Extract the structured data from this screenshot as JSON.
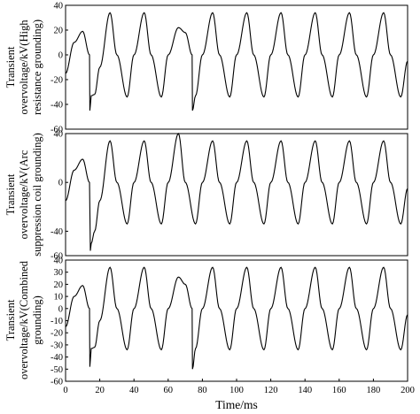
{
  "chart_data": [
    {
      "type": "line",
      "ylabel": [
        "Transient",
        "overvoltage/kV(High",
        "resistance grounding)"
      ],
      "xlabel": "",
      "xlim": [
        0,
        200
      ],
      "ylim": [
        -60,
        40
      ],
      "yticks": [
        40,
        20,
        0,
        -20,
        -40,
        -60
      ],
      "xticks": [],
      "grid": false,
      "series": [
        {
          "sampled_x": [
            0,
            5,
            10,
            14,
            14.2,
            15,
            17,
            20,
            26,
            30,
            36,
            40,
            46,
            50,
            56,
            60,
            66,
            70,
            74,
            74.2,
            76,
            80,
            86,
            90,
            96,
            100,
            106,
            110,
            116,
            120,
            126,
            130,
            136,
            140,
            146,
            150,
            156,
            160,
            166,
            170,
            176,
            180,
            186,
            190,
            196,
            200
          ],
          "sampled_y": [
            -15,
            10,
            19,
            0,
            -45,
            -33,
            -32,
            -10,
            34,
            0,
            -34,
            0,
            34,
            0,
            -34,
            0,
            22,
            18,
            0,
            -45,
            -33,
            0,
            34,
            0,
            -34,
            0,
            34,
            0,
            -34,
            0,
            34,
            0,
            -34,
            0,
            34,
            0,
            -34,
            0,
            34,
            0,
            -34,
            0,
            34,
            0,
            -34,
            -5
          ]
        }
      ]
    },
    {
      "type": "line",
      "ylabel": [
        "Transient",
        "overvoltage/kV(Arc",
        "suppression coil grounding)"
      ],
      "xlabel": "",
      "xlim": [
        0,
        200
      ],
      "ylim": [
        -60,
        40
      ],
      "yticks": [
        40,
        0,
        -40,
        -60
      ],
      "xticks": [],
      "grid": false,
      "series": [
        {
          "sampled_x": [
            0,
            5,
            10,
            14,
            14.5,
            15,
            17,
            20,
            26,
            30,
            36,
            40,
            46,
            50,
            56,
            60,
            66,
            70,
            76,
            80,
            86,
            90,
            96,
            100,
            106,
            110,
            116,
            120,
            126,
            130,
            136,
            140,
            146,
            150,
            156,
            160,
            166,
            170,
            176,
            180,
            186,
            190,
            196,
            200
          ],
          "sampled_y": [
            -15,
            10,
            19,
            0,
            -56,
            -50,
            -40,
            -15,
            34,
            0,
            -34,
            0,
            34,
            0,
            -34,
            0,
            40,
            0,
            -34,
            0,
            34,
            0,
            -34,
            0,
            34,
            0,
            -34,
            0,
            34,
            0,
            -34,
            0,
            34,
            0,
            -34,
            0,
            34,
            0,
            -34,
            0,
            34,
            0,
            -34,
            -5
          ]
        }
      ]
    },
    {
      "type": "line",
      "ylabel": [
        "Transient",
        "overvoltage/kV(Combined",
        "grounding)"
      ],
      "xlabel": "Time/ms",
      "xlim": [
        0,
        200
      ],
      "ylim": [
        -60,
        40
      ],
      "yticks": [
        40,
        30,
        20,
        10,
        0,
        -10,
        -20,
        -30,
        -40,
        -50,
        -60
      ],
      "xticks": [
        0,
        20,
        40,
        60,
        80,
        100,
        120,
        140,
        160,
        180,
        200
      ],
      "grid": false,
      "series": [
        {
          "sampled_x": [
            0,
            5,
            10,
            14,
            14.2,
            15,
            17,
            20,
            26,
            30,
            36,
            40,
            46,
            50,
            56,
            60,
            66,
            70,
            74,
            74.2,
            76,
            80,
            86,
            90,
            96,
            100,
            106,
            110,
            116,
            120,
            126,
            130,
            136,
            140,
            146,
            150,
            156,
            160,
            166,
            170,
            176,
            180,
            186,
            190,
            196,
            200
          ],
          "sampled_y": [
            -15,
            10,
            19,
            0,
            -48,
            -33,
            -32,
            -10,
            34,
            0,
            -34,
            0,
            34,
            0,
            -34,
            0,
            26,
            20,
            0,
            -50,
            -33,
            0,
            34,
            0,
            -34,
            0,
            34,
            0,
            -34,
            0,
            34,
            0,
            -34,
            0,
            34,
            0,
            -34,
            0,
            34,
            0,
            -34,
            0,
            34,
            0,
            -34,
            -5
          ]
        }
      ]
    }
  ]
}
